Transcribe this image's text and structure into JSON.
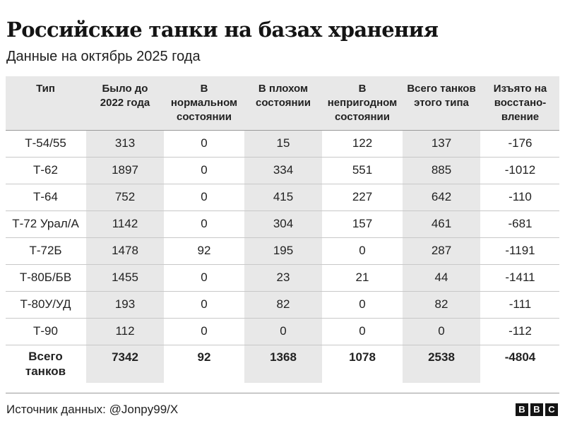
{
  "title": "Российские танки на базах хранения",
  "subtitle": "Данные на октябрь 2025 года",
  "table": {
    "headers": [
      "Тип",
      "Было до 2022 года",
      "В нормальном состоянии",
      "В плохом состоянии",
      "В непригодном состоянии",
      "Всего танков этого типа",
      "Изъято на восстано-вление"
    ],
    "header_lines": [
      [
        "Тип"
      ],
      [
        "Было до",
        "2022 года"
      ],
      [
        "В",
        "нормальном",
        "состоянии"
      ],
      [
        "В плохом",
        "состоянии"
      ],
      [
        "В",
        "непригодном",
        "состоянии"
      ],
      [
        "Всего танков",
        "этого типа"
      ],
      [
        "Изъято на",
        "восстано-",
        "вление"
      ]
    ],
    "rows": [
      [
        "Т-54/55",
        "313",
        "0",
        "15",
        "122",
        "137",
        "-176"
      ],
      [
        "Т-62",
        "1897",
        "0",
        "334",
        "551",
        "885",
        "-1012"
      ],
      [
        "Т-64",
        "752",
        "0",
        "415",
        "227",
        "642",
        "-110"
      ],
      [
        "Т-72 Урал/А",
        "1142",
        "0",
        "304",
        "157",
        "461",
        "-681"
      ],
      [
        "Т-72Б",
        "1478",
        "92",
        "195",
        "0",
        "287",
        "-1191"
      ],
      [
        "Т-80Б/БВ",
        "1455",
        "0",
        "23",
        "21",
        "44",
        "-1411"
      ],
      [
        "Т-80У/УД",
        "193",
        "0",
        "82",
        "0",
        "82",
        "-111"
      ],
      [
        "Т-90",
        "112",
        "0",
        "0",
        "0",
        "0",
        "-112"
      ]
    ],
    "total": {
      "label": "Всего танков",
      "label_lines": [
        "Всего",
        "танков"
      ],
      "values": [
        "7342",
        "92",
        "1368",
        "1078",
        "2538",
        "-4804"
      ]
    }
  },
  "source": "Источник данных: @Jonpy99/X",
  "logo": {
    "letters": [
      "B",
      "B",
      "C"
    ]
  },
  "colors": {
    "shaded_column": "#e8e8e8",
    "text": "#222222",
    "logo": "#141414"
  }
}
